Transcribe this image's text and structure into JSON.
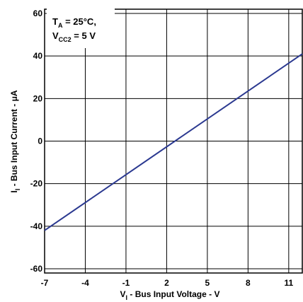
{
  "chart_data": {
    "type": "line",
    "title": "",
    "xlabel": {
      "main": "V",
      "sub": "I",
      "rest": " - Bus Input Voltage - V"
    },
    "ylabel": {
      "main": "I",
      "sub": "I",
      "rest": " - Bus Input Current - μA"
    },
    "xlim": [
      -7,
      12
    ],
    "ylim": [
      -62,
      62
    ],
    "x_ticks": [
      -7,
      -4,
      -1,
      2,
      5,
      8,
      11
    ],
    "x_tick_labels": [
      "-7",
      "-4",
      "-1",
      "2",
      "5",
      "8",
      "11"
    ],
    "y_ticks": [
      -60,
      -40,
      -20,
      0,
      20,
      40,
      60
    ],
    "y_tick_labels": [
      "-60",
      "-40",
      "-20",
      "0",
      "20",
      "40",
      "60"
    ],
    "grid": true,
    "annotation": {
      "line1": {
        "main": "T",
        "sub": "A",
        "rest": " = 25°C,"
      },
      "line2": {
        "main": "V",
        "sub": "CC2",
        "rest": " = 5 V"
      }
    },
    "series": [
      {
        "color": "#2b3990",
        "x": [
          -7,
          12
        ],
        "y": [
          -42,
          41
        ]
      }
    ]
  }
}
